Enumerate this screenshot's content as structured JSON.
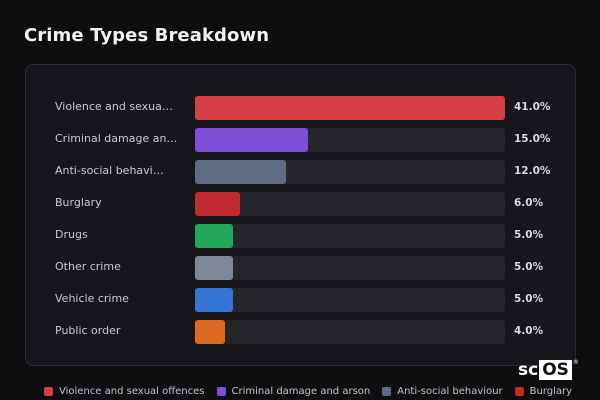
{
  "chart_data": {
    "type": "bar",
    "orientation": "horizontal",
    "title": "Crime Types Breakdown",
    "value_max": 41.0,
    "categories": [
      "Violence and sexual offences",
      "Criminal damage and arson",
      "Anti-social behaviour",
      "Burglary",
      "Drugs",
      "Other crime",
      "Vehicle crime",
      "Public order"
    ],
    "display_labels": [
      "Violence and sexua…",
      "Criminal damage an…",
      "Anti-social behavi…",
      "Burglary",
      "Drugs",
      "Other crime",
      "Vehicle crime",
      "Public order"
    ],
    "values": [
      41.0,
      15.0,
      12.0,
      6.0,
      5.0,
      5.0,
      5.0,
      4.0
    ],
    "value_labels": [
      "41.0%",
      "15.0%",
      "12.0%",
      "6.0%",
      "5.0%",
      "5.0%",
      "5.0%",
      "4.0%"
    ],
    "colors": [
      "#d64045",
      "#7d4fd8",
      "#5e6b80",
      "#bf2a2e",
      "#22a85a",
      "#7e8797",
      "#3573d6",
      "#d96a1f"
    ],
    "legend": [
      {
        "label": "Violence and sexual offences",
        "color": "#d64045"
      },
      {
        "label": "Criminal damage and arson",
        "color": "#7d4fd8"
      },
      {
        "label": "Anti-social behaviour",
        "color": "#5e6b80"
      },
      {
        "label": "Burglary",
        "color": "#bf2a2e"
      }
    ],
    "legend_position": "bottom",
    "grid": false
  },
  "logo": {
    "sc": "sc",
    "os": "OS",
    "reg": "®"
  }
}
